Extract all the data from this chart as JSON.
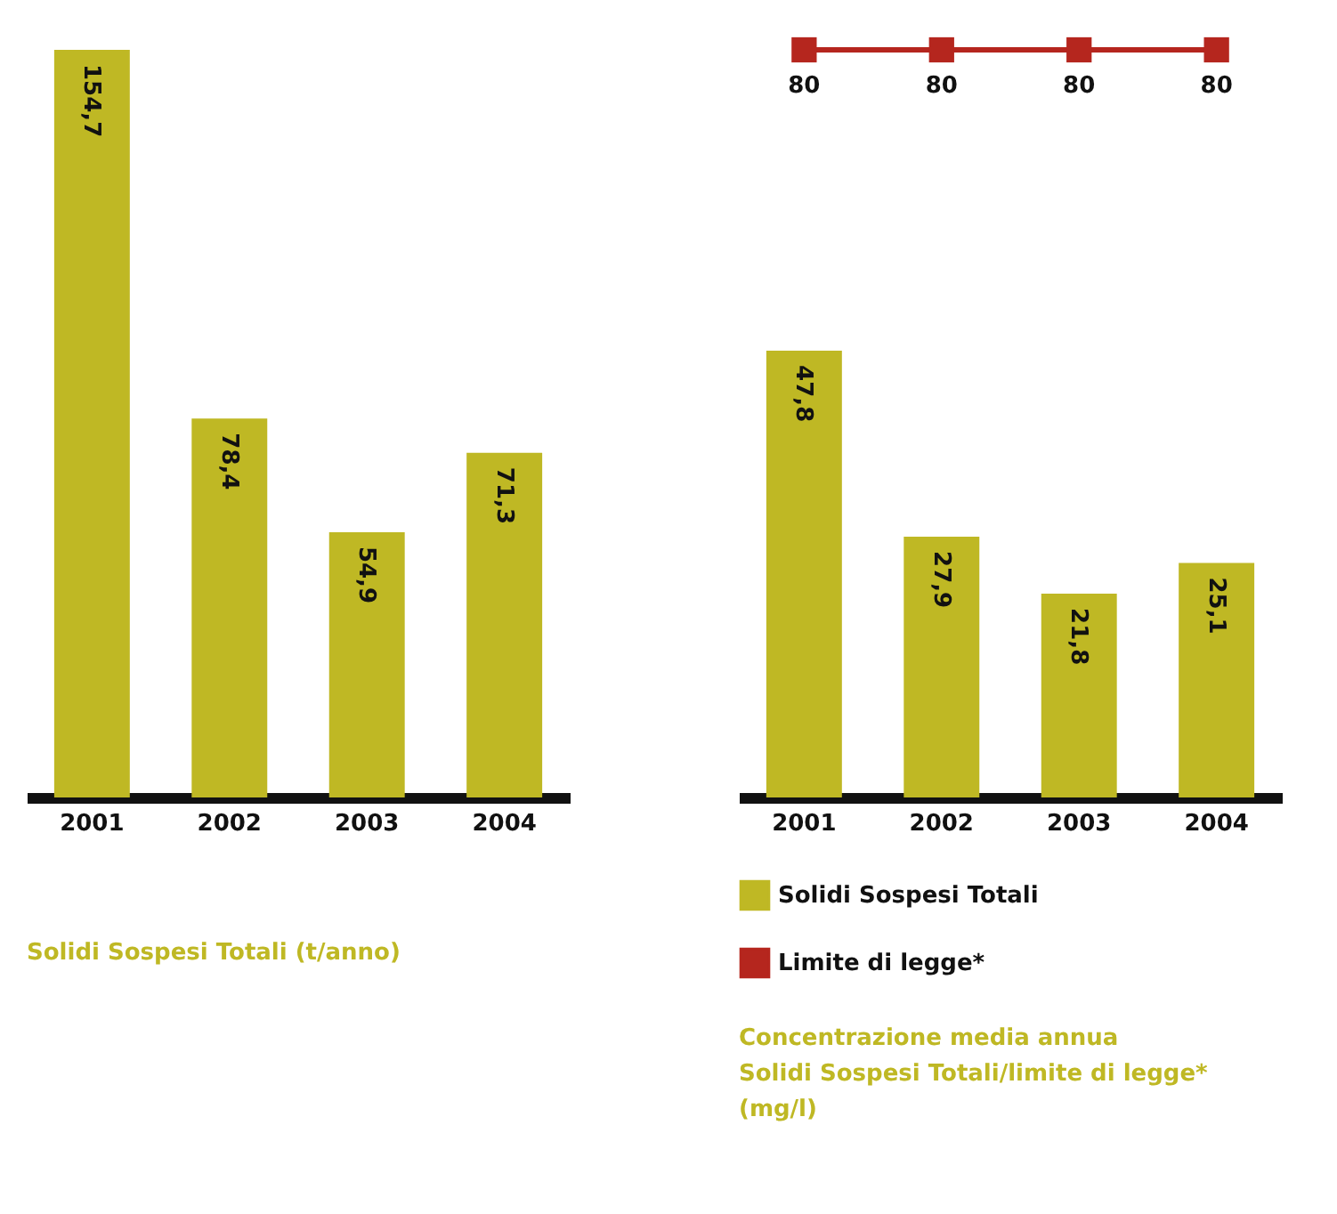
{
  "chart_data": [
    {
      "type": "bar",
      "title": "Solidi Sospesi Totali (t/anno)",
      "categories": [
        "2001",
        "2002",
        "2003",
        "2004"
      ],
      "tick_labels": "x",
      "legend": false,
      "series": [
        {
          "color": "#bfb824",
          "values": [
            154.7,
            78.4,
            54.9,
            71.3
          ],
          "value_labels": [
            "154,7",
            "78,4",
            "54,9",
            "71,3"
          ]
        }
      ]
    },
    {
      "type": "bar",
      "title": "Concentrazione media annua\nSolidi Sospesi Totali/limite di legge*\n(mg/l)",
      "categories": [
        "2001",
        "2002",
        "2003",
        "2004"
      ],
      "tick_labels": "x",
      "legend": "bottom",
      "marker": "square",
      "series": [
        {
          "name": "Solidi Sospesi Totali",
          "type": "bar",
          "color": "#bfb824",
          "values": [
            47.8,
            27.9,
            21.8,
            25.1
          ],
          "value_labels": [
            "47,8",
            "27,9",
            "21,8",
            "25,1"
          ]
        },
        {
          "name": "Limite di legge*",
          "type": "line",
          "color": "#b5261e",
          "values": [
            80,
            80,
            80,
            80
          ],
          "value_labels": [
            "80",
            "80",
            "80",
            "80"
          ]
        }
      ]
    }
  ]
}
